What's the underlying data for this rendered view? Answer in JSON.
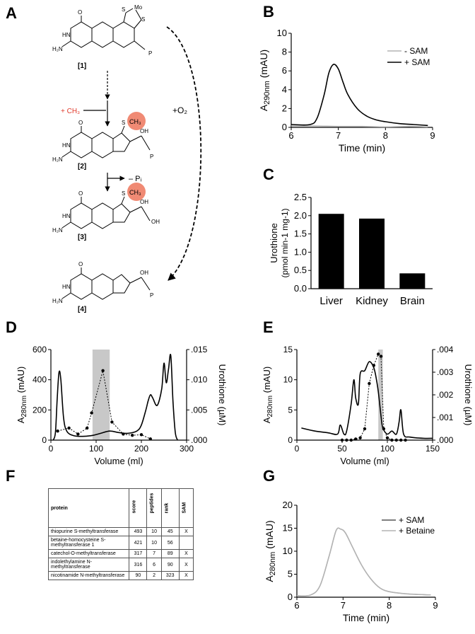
{
  "panel_letters": {
    "A": "A",
    "B": "B",
    "C": "C",
    "D": "D",
    "E": "E",
    "F": "F",
    "G": "G"
  },
  "scheme": {
    "compounds": [
      "[1]",
      "[2]",
      "[3]",
      "[4]"
    ],
    "methyl_label": "+ CH₃",
    "ch3_badge": "CH₃",
    "o2_label": "+O₂",
    "pi_label": "– Pᵢ",
    "mo_label": "Mo",
    "s_label": "S",
    "oh_label": "OH",
    "h2n_label": "H₂N",
    "hn_label": "HN",
    "o_label": "O",
    "phosphate": "P",
    "highlight_color": "#f08a74",
    "methyl_color": "#e0392b"
  },
  "table": {
    "headers": [
      "protein",
      "score",
      "peptides",
      "rank",
      "SAM"
    ],
    "rows": [
      {
        "protein": "thiopurine S-methyltransferase",
        "score": "493",
        "peptides": "10",
        "rank": "45",
        "sam": "X"
      },
      {
        "protein": "betaine-homocysteine S-methyltransferase 1",
        "score": "421",
        "peptides": "10",
        "rank": "56",
        "sam": ""
      },
      {
        "protein": "catechol-O-methyltransferase",
        "score": "317",
        "peptides": "7",
        "rank": "89",
        "sam": "X"
      },
      {
        "protein": "indolethylamine N-methyltransferase",
        "score": "316",
        "peptides": "6",
        "rank": "90",
        "sam": "X"
      },
      {
        "protein": "nicotinamide N-methyltransferase",
        "score": "90",
        "peptides": "2",
        "rank": "323",
        "sam": "X"
      }
    ]
  },
  "chart_data": [
    {
      "panel": "B",
      "type": "line",
      "xlabel": "Time (min)",
      "ylabel": "A290nm (mAU)",
      "xlim": [
        6,
        9
      ],
      "ylim": [
        0,
        10
      ],
      "xticks": [
        6,
        7,
        8,
        9
      ],
      "yticks": [
        0,
        2,
        4,
        6,
        8,
        10
      ],
      "legend": "top-right",
      "series": [
        {
          "name": "- SAM",
          "color": "#b3b3b3",
          "x": [
            6.0,
            6.5,
            7.0,
            7.5,
            8.0,
            8.5,
            8.9
          ],
          "y": [
            0.15,
            0.15,
            0.1,
            0.1,
            0.05,
            0.1,
            0.05
          ]
        },
        {
          "name": "+ SAM",
          "color": "#000000",
          "x": [
            6.0,
            6.4,
            6.55,
            6.7,
            6.8,
            6.9,
            7.0,
            7.1,
            7.2,
            7.4,
            7.6,
            7.8,
            8.0,
            8.3,
            8.6,
            8.9
          ],
          "y": [
            0.3,
            0.3,
            1.0,
            3.5,
            5.8,
            6.7,
            6.2,
            4.8,
            3.5,
            2.0,
            1.2,
            0.8,
            0.6,
            0.4,
            0.3,
            0.2
          ]
        }
      ]
    },
    {
      "panel": "C",
      "type": "bar",
      "ylabel_line1": "Urothione",
      "ylabel_line2": "(pmol min-1 mg-1)",
      "categories": [
        "Liver",
        "Kidney",
        "Brain"
      ],
      "values": [
        2.05,
        1.92,
        0.42
      ],
      "ylim": [
        0,
        2.5
      ],
      "yticks": [
        0.0,
        0.5,
        1.0,
        1.5,
        2.0,
        2.5
      ]
    },
    {
      "panel": "D",
      "type": "line",
      "xlabel": "Volume (ml)",
      "ylabel": "A280nm (mAU)",
      "ylabel_right": "Urothione (µM)",
      "xlim": [
        0,
        300
      ],
      "ylim": [
        0,
        600
      ],
      "ylim_right": [
        0,
        0.015
      ],
      "xticks": [
        0,
        100,
        200,
        300
      ],
      "yticks": [
        0,
        200,
        400,
        600
      ],
      "yticks_right": [
        ".000",
        ".005",
        ".010",
        ".015"
      ],
      "shaded_region": [
        92,
        130
      ],
      "series": [
        {
          "name": "A280",
          "x": [
            5,
            10,
            14,
            18,
            22,
            28,
            35,
            50,
            70,
            90,
            110,
            130,
            150,
            170,
            190,
            200,
            210,
            215,
            220,
            225,
            235,
            245,
            250,
            255,
            260,
            265,
            270,
            275,
            280
          ],
          "y": [
            0,
            50,
            280,
            450,
            400,
            150,
            60,
            30,
            25,
            30,
            45,
            60,
            50,
            45,
            60,
            100,
            200,
            260,
            300,
            280,
            230,
            340,
            510,
            380,
            470,
            560,
            250,
            50,
            0
          ]
        },
        {
          "name": "Urothione",
          "x": [
            15,
            40,
            60,
            80,
            90,
            115,
            135,
            160,
            180,
            200,
            220
          ],
          "y": [
            0.0015,
            0.002,
            0.001,
            0.002,
            0.0045,
            0.0115,
            0.003,
            0.001,
            0.0008,
            0.0009,
            0.0002
          ]
        }
      ]
    },
    {
      "panel": "E",
      "type": "line",
      "xlabel": "Volume (ml)",
      "ylabel": "A280nm (mAU)",
      "ylabel_right": "Urothione (µM)",
      "xlim": [
        0,
        150
      ],
      "ylim": [
        0,
        15
      ],
      "ylim_right": [
        0,
        0.004
      ],
      "xticks": [
        0,
        50,
        100,
        150
      ],
      "yticks": [
        0,
        5,
        10,
        15
      ],
      "yticks_right": [
        ".000",
        ".001",
        ".002",
        ".003",
        ".004"
      ],
      "shaded_region": [
        90,
        95
      ],
      "series": [
        {
          "name": "A280",
          "x": [
            5,
            20,
            35,
            45,
            48,
            52,
            55,
            60,
            63,
            65,
            68,
            70,
            75,
            80,
            85,
            88,
            90,
            93,
            95,
            100,
            105,
            110,
            113,
            115,
            118,
            125,
            140,
            150
          ],
          "y": [
            2,
            1.5,
            1.2,
            1,
            2.5,
            1,
            1.5,
            6,
            10,
            7,
            6,
            11,
            11.5,
            13,
            12,
            10,
            8,
            4,
            2,
            1,
            1.5,
            1,
            3,
            5,
            1,
            0.5,
            0.3,
            0.3
          ]
        },
        {
          "name": "Urothione",
          "x": [
            50,
            55,
            60,
            65,
            70,
            75,
            80,
            85,
            90,
            93,
            96,
            100,
            105,
            110,
            115,
            120
          ],
          "y": [
            0,
            0,
            0,
            5e-05,
            0.0001,
            0.0005,
            0.0025,
            0.0033,
            0.0038,
            0.0037,
            0.0005,
            0.0001,
            0,
            0,
            0,
            0
          ]
        }
      ]
    },
    {
      "panel": "G",
      "type": "line",
      "xlabel": "Time (min)",
      "ylabel": "A280nm (mAU)",
      "xlim": [
        6,
        9
      ],
      "ylim": [
        0,
        20
      ],
      "xticks": [
        6,
        7,
        8,
        9
      ],
      "yticks": [
        0,
        5,
        10,
        15,
        20
      ],
      "legend": "top-right",
      "series": [
        {
          "name": "+ SAM",
          "color": "#555555",
          "x": [
            6.0,
            6.3,
            6.5,
            6.7,
            6.85,
            6.95,
            7.05,
            7.2,
            7.4,
            7.6,
            7.8,
            8.0,
            8.3,
            8.6,
            8.9
          ],
          "y": [
            0.3,
            0.5,
            2.5,
            9,
            14.5,
            14.8,
            14,
            11,
            7,
            4,
            2,
            1.2,
            0.8,
            0.6,
            0.5
          ]
        },
        {
          "name": "+ Betaine",
          "color": "#b3b3b3",
          "x": [
            6.0,
            6.3,
            6.5,
            6.7,
            6.85,
            6.95,
            7.05,
            7.2,
            7.4,
            7.6,
            7.8,
            8.0,
            8.3,
            8.6,
            8.9
          ],
          "y": [
            0.3,
            0.5,
            2.5,
            9,
            14.5,
            14.8,
            14,
            11,
            7,
            4,
            2,
            1.2,
            0.8,
            0.6,
            0.5
          ]
        }
      ]
    }
  ]
}
